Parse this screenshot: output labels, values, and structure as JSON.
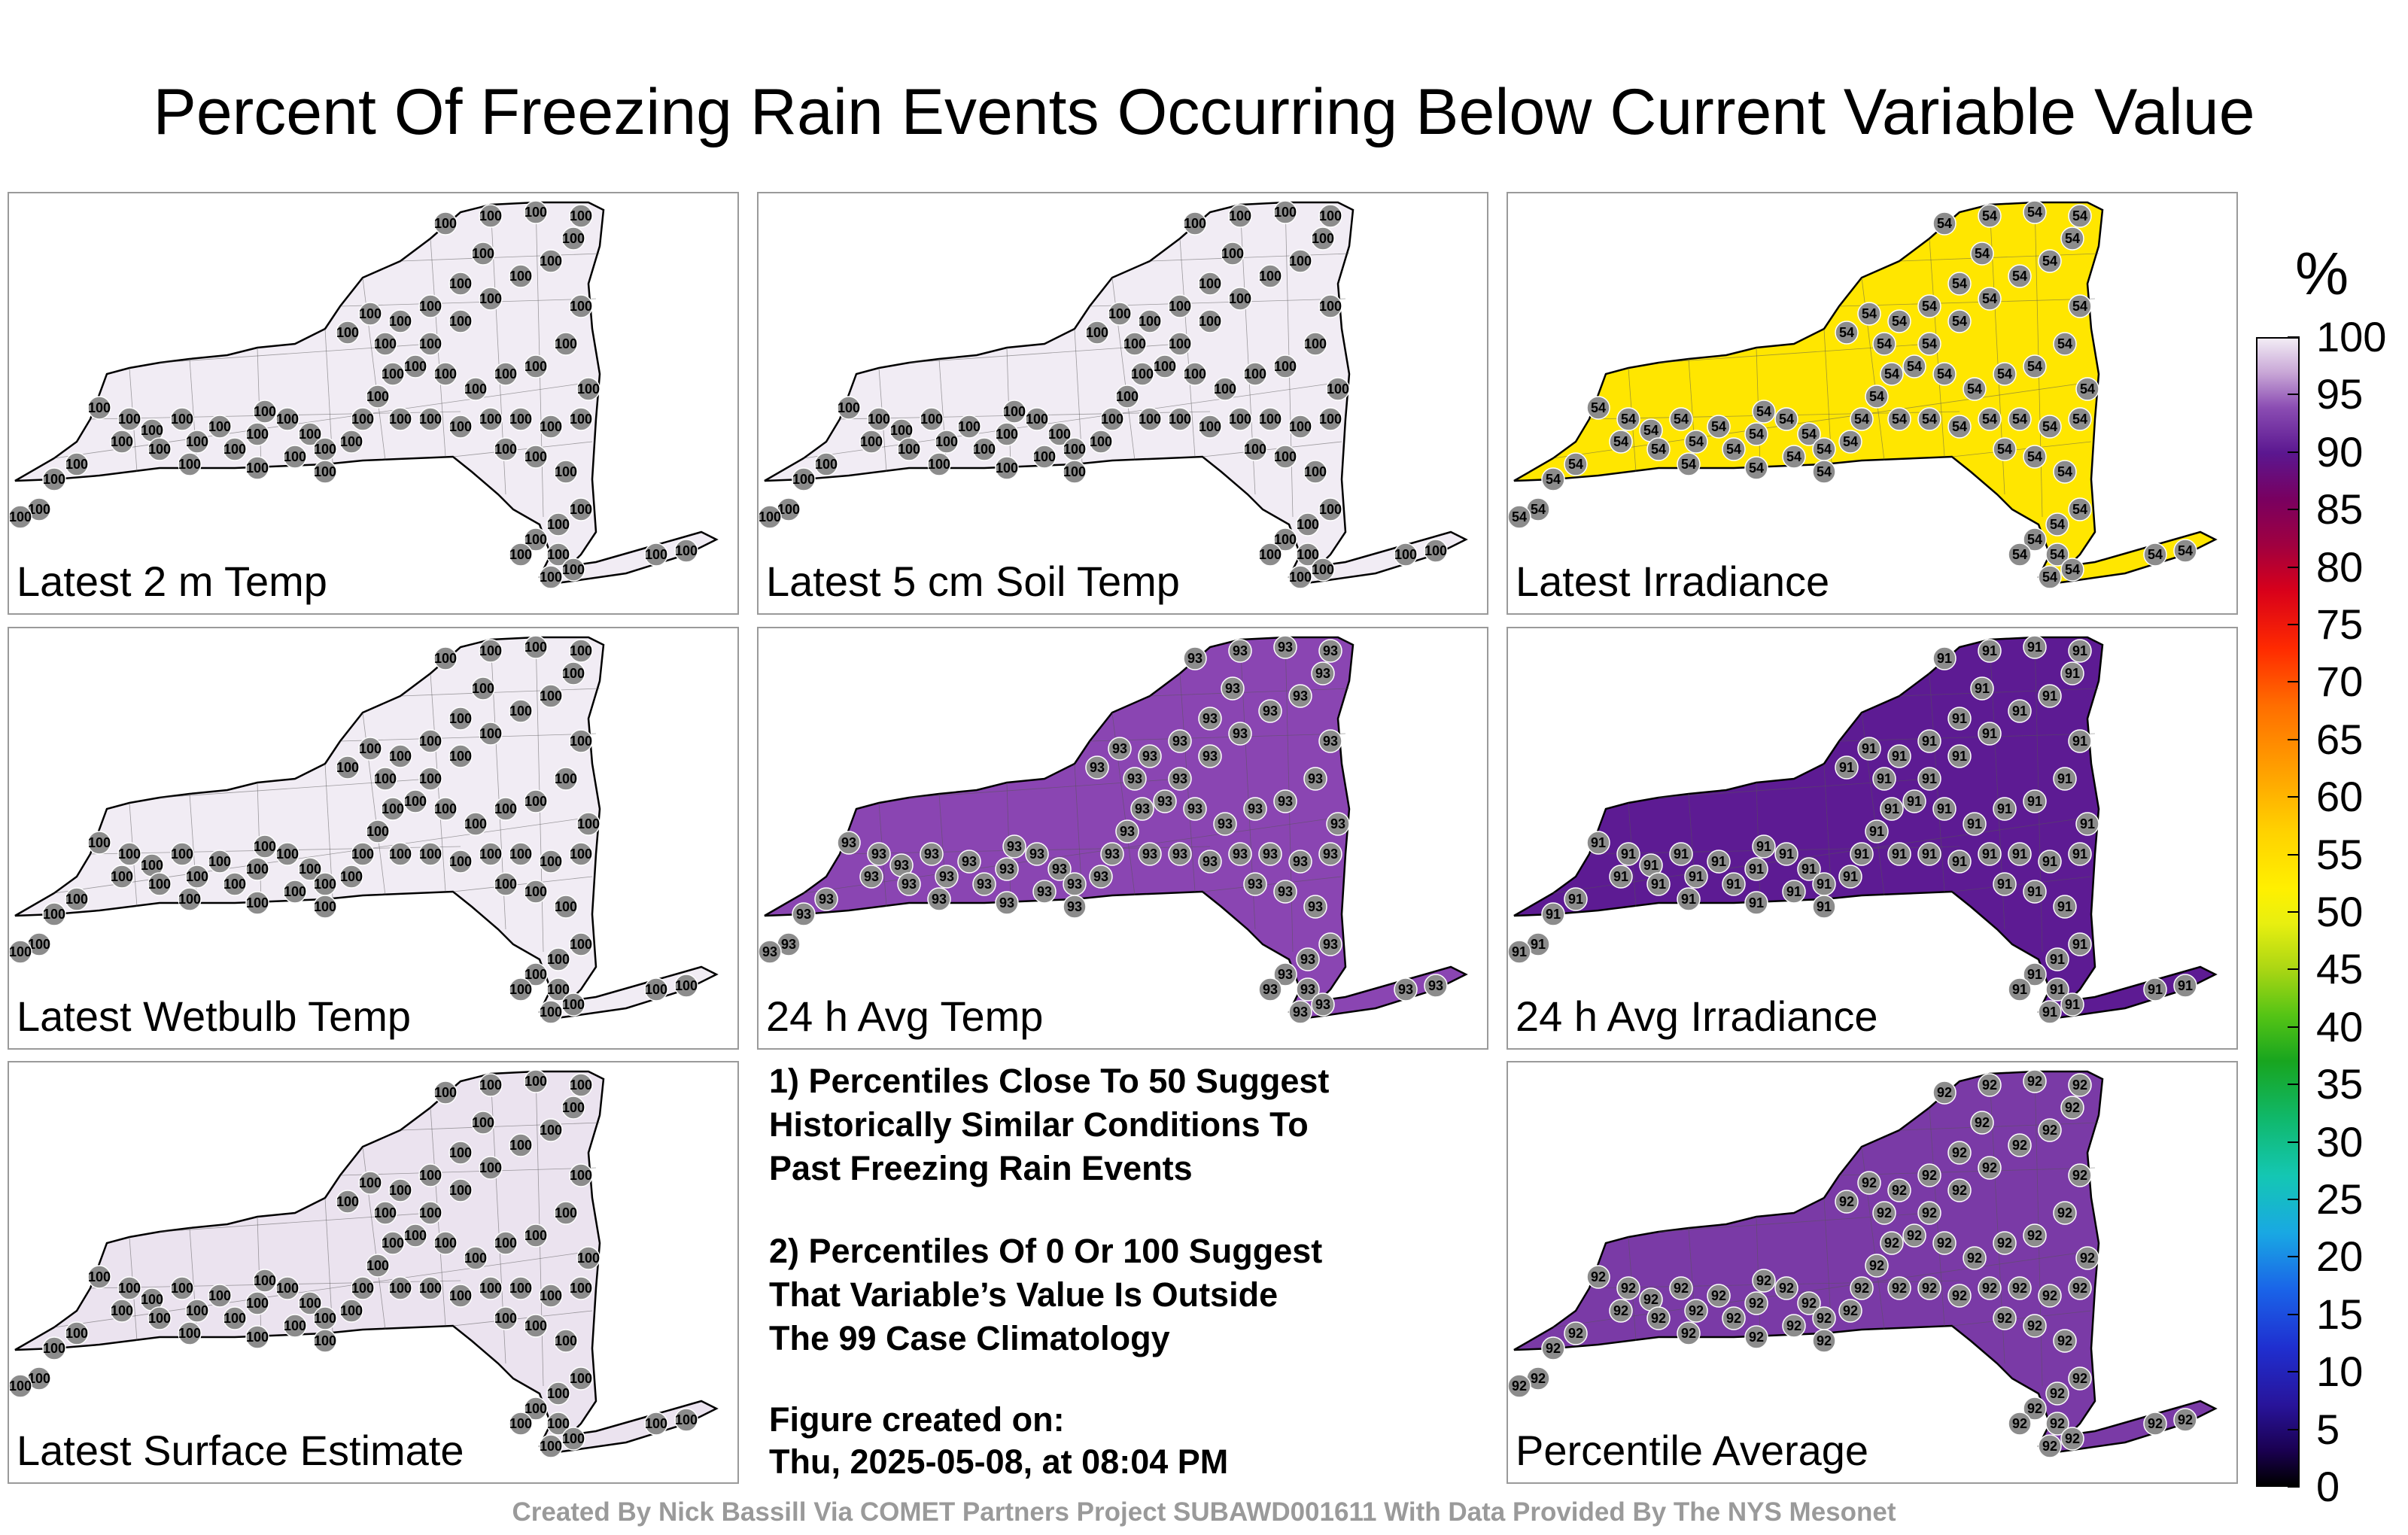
{
  "title": "Percent Of Freezing Rain Events Occurring Below Current Variable Value",
  "colorbar": {
    "unit_label": "%",
    "ticks": [
      "100",
      "95",
      "90",
      "85",
      "80",
      "75",
      "70",
      "65",
      "60",
      "55",
      "50",
      "45",
      "40",
      "35",
      "30",
      "25",
      "20",
      "15",
      "10",
      "5",
      "0"
    ],
    "range": [
      0,
      100
    ]
  },
  "panels": [
    {
      "label": "Latest 2 m Temp",
      "fill": "#f1ecf4",
      "value": "100"
    },
    {
      "label": "Latest 5 cm Soil Temp",
      "fill": "#f1ecf4",
      "value": "100"
    },
    {
      "label": "Latest Irradiance",
      "fill": "#ffe600",
      "value": "54"
    },
    {
      "label": "Latest Wetbulb Temp",
      "fill": "#f1ecf4",
      "value": "100"
    },
    {
      "label": "24 h Avg Temp",
      "fill": "#8a45b2",
      "value": "93"
    },
    {
      "label": "24 h Avg Irradiance",
      "fill": "#5d1b93",
      "value": "91"
    },
    {
      "label": "Latest Surface Estimate",
      "fill": "#ebe3ef",
      "value": "100"
    },
    {
      "label": "Percentile Average",
      "fill": "#7a3aa6",
      "value": "92"
    }
  ],
  "notes": {
    "note1_lines": [
      "1) Percentiles Close To 50 Suggest",
      "Historically Similar Conditions To",
      "Past Freezing Rain Events"
    ],
    "note2_lines": [
      "2) Percentiles Of 0 Or 100 Suggest",
      "That Variable’s Value Is Outside",
      "The 99 Case Climatology"
    ],
    "created_label": "Figure created on:",
    "created_date": "Thu, 2025-05-08, at 08:04 PM"
  },
  "credit": "Created By Nick Bassill Via COMET Partners Project SUBAWD001611 With Data Provided By The NYS Mesonet"
}
